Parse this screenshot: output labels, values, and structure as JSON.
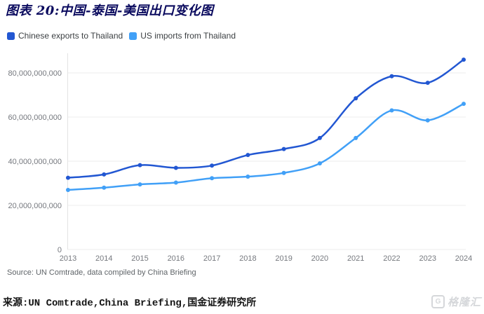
{
  "figure": {
    "title": "图表 20:中国-泰国-美国出口变化图",
    "source_note": "Source: UN Comtrade, data compiled by China Briefing",
    "caption": "来源:UN Comtrade,China Briefing,国金证券研究所"
  },
  "legend": {
    "items": [
      {
        "label": "Chinese exports to Thailand",
        "color": "#2257d2"
      },
      {
        "label": "US imports from Thailand",
        "color": "#41a0f7"
      }
    ]
  },
  "watermark": {
    "logo": "G",
    "text": "格隆汇"
  },
  "colors": {
    "title": "#0a0a5e",
    "grid": "#ededed",
    "axis_line": "#e3e3e3",
    "axis_text": "#75787e",
    "series1": "#2257d2",
    "series2": "#41a0f7"
  },
  "chart_data": {
    "type": "line",
    "x": [
      2013,
      2014,
      2015,
      2016,
      2017,
      2018,
      2019,
      2020,
      2021,
      2022,
      2023,
      2024
    ],
    "series": [
      {
        "name": "Chinese exports to Thailand",
        "color": "#2257d2",
        "values": [
          32500000000,
          34000000000,
          38200000000,
          37000000000,
          38000000000,
          42800000000,
          45500000000,
          50500000000,
          68500000000,
          78500000000,
          75500000000,
          86000000000
        ]
      },
      {
        "name": "US imports from Thailand",
        "color": "#41a0f7",
        "values": [
          27000000000,
          28000000000,
          29500000000,
          30300000000,
          32300000000,
          33000000000,
          34700000000,
          39000000000,
          50500000000,
          63000000000,
          58500000000,
          66000000000
        ]
      }
    ],
    "ylim": [
      0,
      88000000000
    ],
    "yticks": [
      0,
      20000000000,
      40000000000,
      60000000000,
      80000000000
    ],
    "ytick_label_zero": "0",
    "grid": true,
    "legend_position": "top-left",
    "smooth": true,
    "markers": true
  }
}
